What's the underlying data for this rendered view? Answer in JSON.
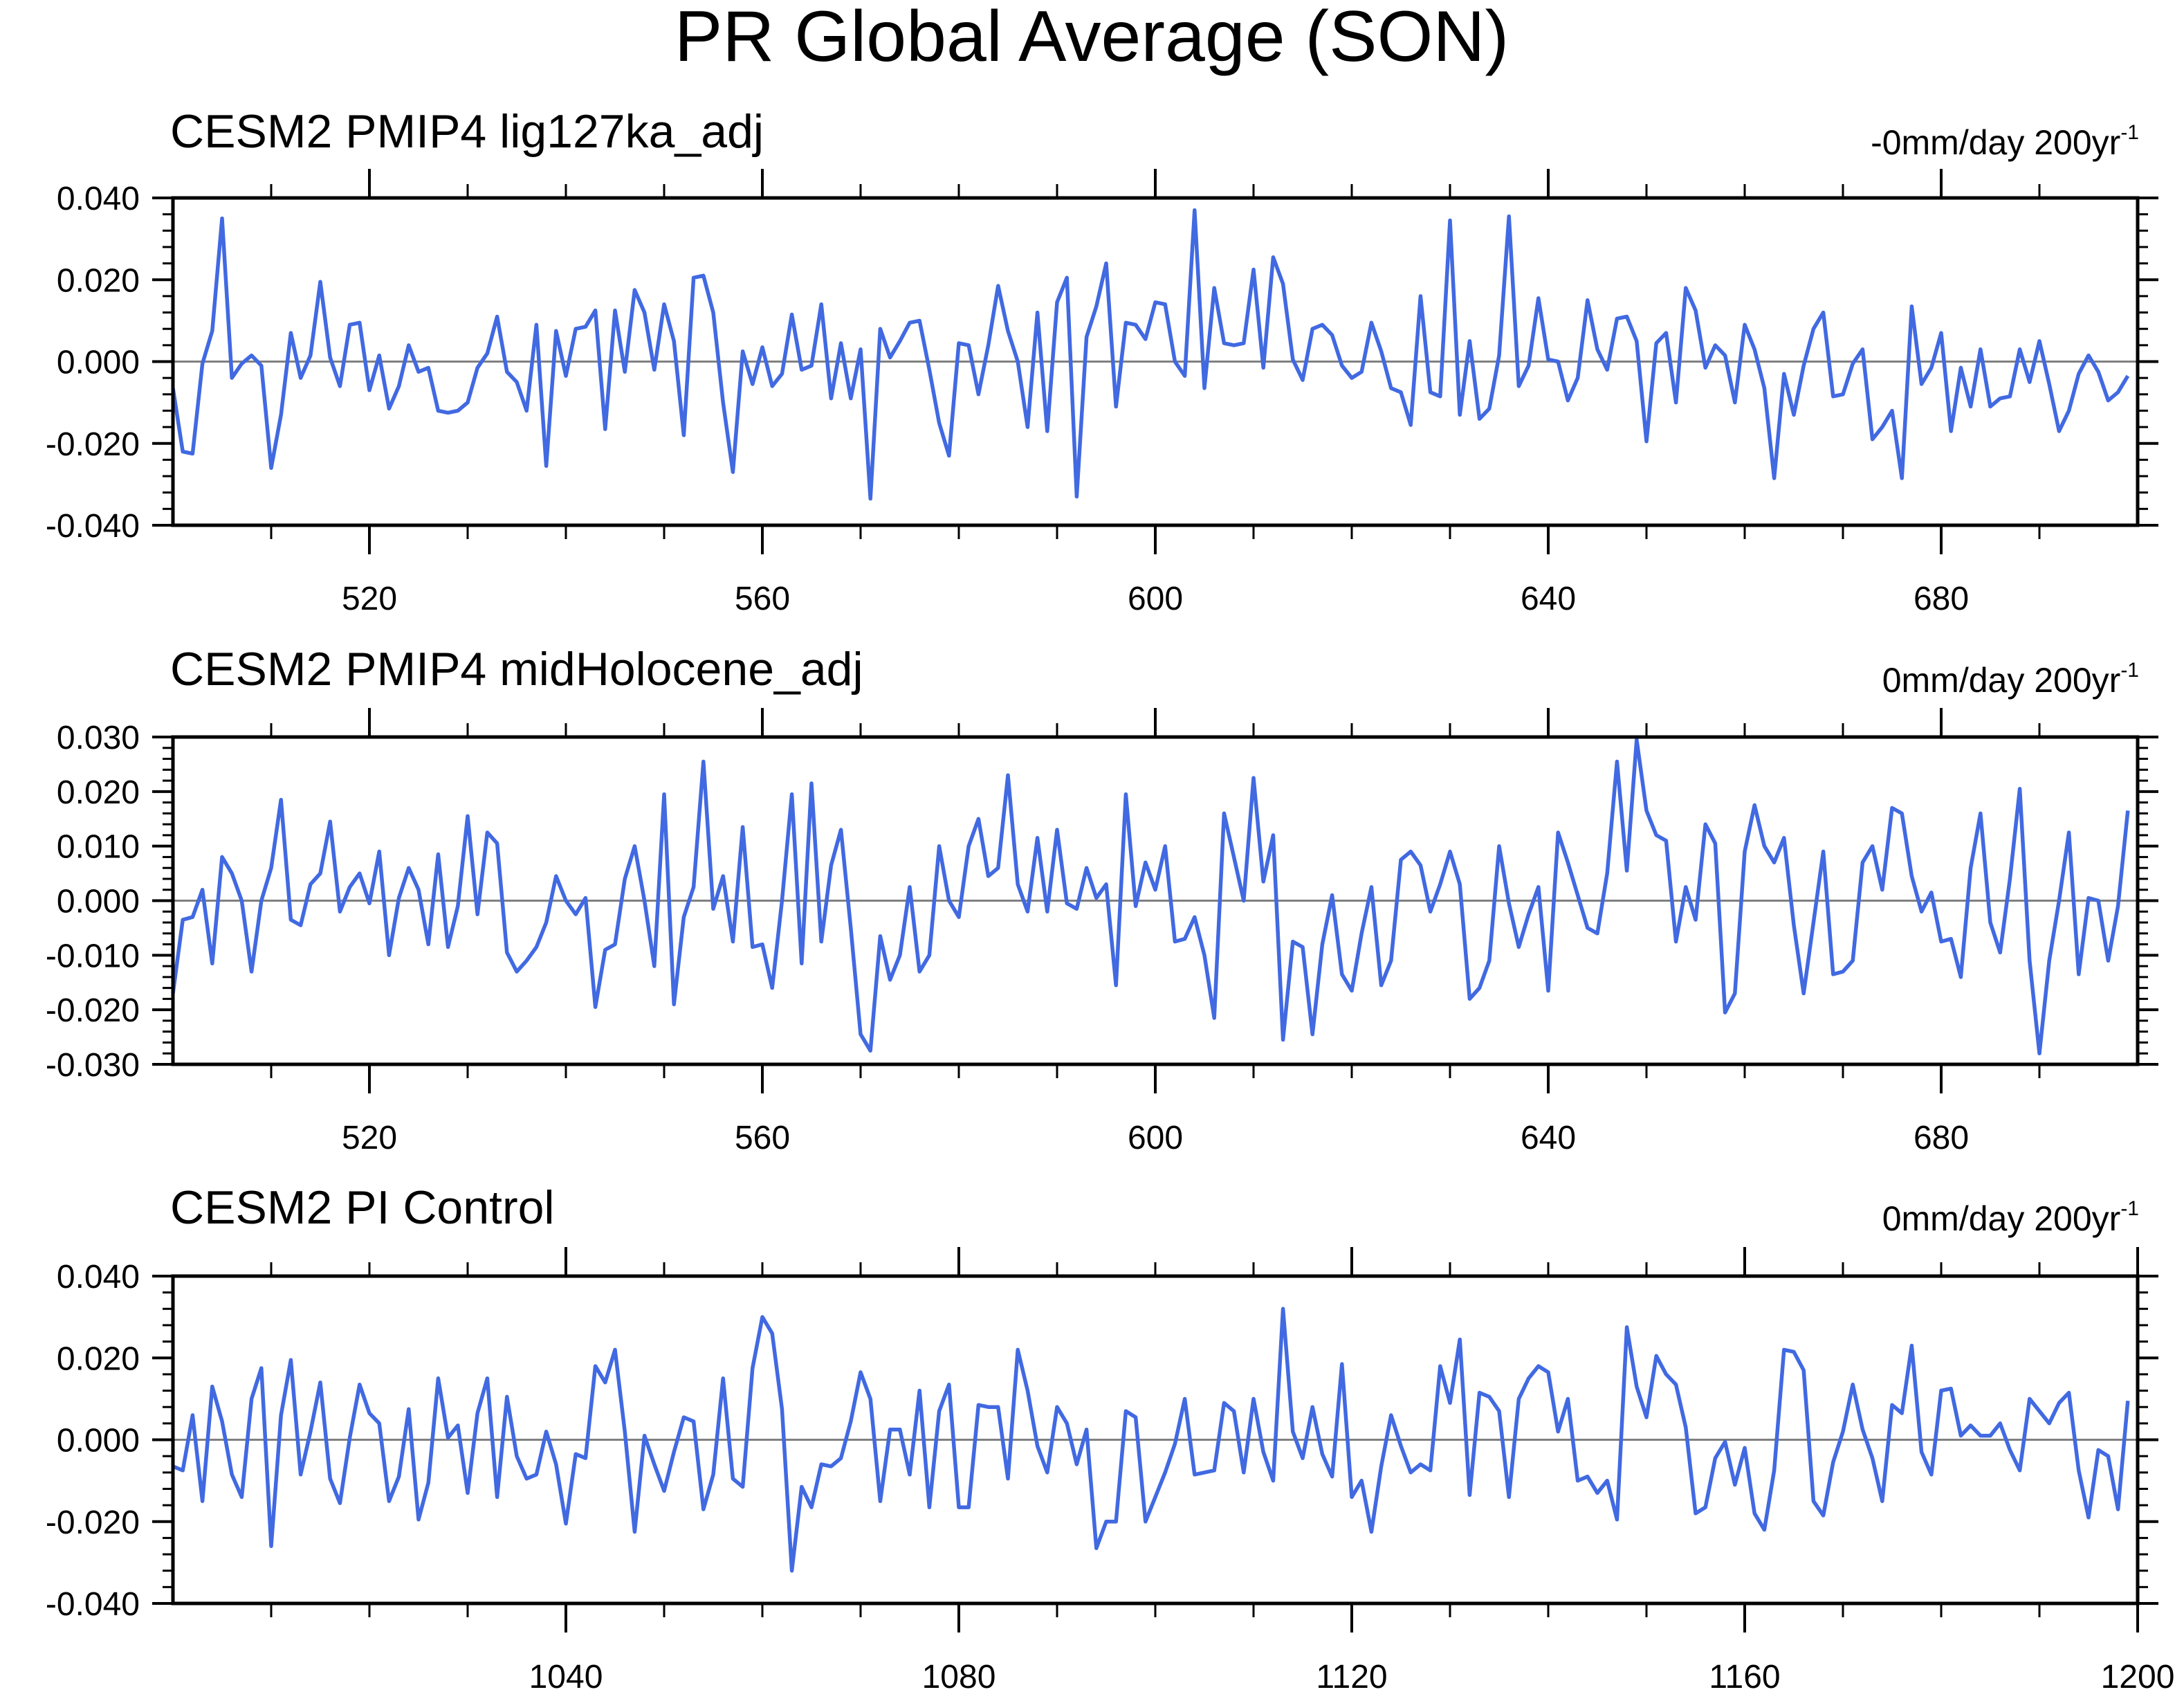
{
  "title": "PR Global Average (SON)",
  "colors": {
    "line": "#4169e1",
    "zero_line": "#808080",
    "axes": "#000000",
    "background": "#ffffff"
  },
  "chart_data": [
    {
      "type": "line",
      "title": "CESM2 PMIP4 lig127ka_adj",
      "trend": {
        "value": "-0mm/day 200yr",
        "superscript": "-1"
      },
      "xlim": [
        500,
        700
      ],
      "ylim": [
        -0.04,
        0.04
      ],
      "yticks": [
        -0.04,
        -0.02,
        0.0,
        0.02,
        0.04
      ],
      "ytick_labels": [
        "-0.040",
        "-0.020",
        "0.000",
        "0.020",
        "0.040"
      ],
      "xticks": [
        520,
        560,
        600,
        640,
        680
      ],
      "xtick_labels": [
        "520",
        "560",
        "600",
        "640",
        "680"
      ],
      "zero_line": true,
      "x_start": 500,
      "x_step": 1,
      "values": [
        -0.0065,
        -0.022,
        -0.0225,
        -0.0005,
        0.0075,
        0.035,
        -0.004,
        -0.0005,
        0.0015,
        -0.001,
        -0.026,
        -0.013,
        0.007,
        -0.004,
        0.0015,
        0.0195,
        0.001,
        -0.006,
        0.009,
        0.0095,
        -0.007,
        0.0015,
        -0.0115,
        -0.006,
        0.004,
        -0.0025,
        -0.0015,
        -0.012,
        -0.0125,
        -0.012,
        -0.01,
        -0.0015,
        0.002,
        0.011,
        -0.0025,
        -0.005,
        -0.012,
        0.009,
        -0.0255,
        0.0075,
        -0.0035,
        0.008,
        0.0085,
        0.0125,
        -0.0165,
        0.0125,
        -0.0025,
        0.0175,
        0.012,
        -0.002,
        0.014,
        0.005,
        -0.018,
        0.0205,
        0.021,
        0.012,
        -0.01,
        -0.027,
        0.0025,
        -0.0055,
        0.0035,
        -0.006,
        -0.003,
        0.0115,
        -0.002,
        -0.001,
        0.014,
        -0.009,
        0.0045,
        -0.009,
        0.003,
        -0.0335,
        0.008,
        0.001,
        0.005,
        0.0095,
        0.01,
        -0.002,
        -0.015,
        -0.023,
        0.0045,
        0.004,
        -0.008,
        0.004,
        0.0185,
        0.0075,
        0.0,
        -0.016,
        0.012,
        -0.017,
        0.0145,
        0.0205,
        -0.033,
        0.006,
        0.0135,
        0.024,
        -0.011,
        0.0095,
        0.009,
        0.0055,
        0.0145,
        0.014,
        0.0,
        -0.0035,
        0.037,
        -0.0065,
        0.018,
        0.0045,
        0.004,
        0.0045,
        0.0225,
        -0.0015,
        0.0255,
        0.019,
        0.0005,
        -0.0045,
        0.008,
        0.009,
        0.0065,
        -0.001,
        -0.004,
        -0.0025,
        0.0095,
        0.0025,
        -0.0065,
        -0.0075,
        -0.0155,
        0.016,
        -0.0075,
        -0.0085,
        0.0345,
        -0.013,
        0.005,
        -0.014,
        -0.0115,
        0.0015,
        0.0355,
        -0.006,
        -0.001,
        0.0155,
        0.0005,
        0.0,
        -0.0095,
        -0.004,
        0.015,
        0.003,
        -0.002,
        0.0105,
        0.011,
        0.005,
        -0.0195,
        0.0045,
        0.007,
        -0.01,
        0.018,
        0.0125,
        -0.0015,
        0.004,
        0.0015,
        -0.01,
        0.009,
        0.003,
        -0.0065,
        -0.0285,
        -0.003,
        -0.013,
        -0.001,
        0.008,
        0.012,
        -0.0085,
        -0.008,
        -0.0005,
        0.003,
        -0.019,
        -0.016,
        -0.012,
        -0.0285,
        0.0135,
        -0.0055,
        -0.0015,
        0.007,
        -0.017,
        -0.0015,
        -0.011,
        0.003,
        -0.011,
        -0.009,
        -0.0085,
        0.003,
        -0.005,
        0.005,
        -0.0055,
        -0.017,
        -0.012,
        -0.003,
        0.0015,
        -0.0025,
        -0.0095,
        -0.0075,
        -0.0035
      ]
    },
    {
      "type": "line",
      "title": "CESM2 PMIP4 midHolocene_adj",
      "trend": {
        "value": "0mm/day 200yr",
        "superscript": "-1"
      },
      "xlim": [
        500,
        700
      ],
      "ylim": [
        -0.03,
        0.03
      ],
      "yticks": [
        -0.03,
        -0.02,
        -0.01,
        0.0,
        0.01,
        0.02,
        0.03
      ],
      "ytick_labels": [
        "-0.030",
        "-0.020",
        "-0.010",
        "0.000",
        "0.010",
        "0.020",
        "0.030"
      ],
      "xticks": [
        520,
        560,
        600,
        640,
        680
      ],
      "xtick_labels": [
        "520",
        "560",
        "600",
        "640",
        "680"
      ],
      "zero_line": true,
      "x_start": 500,
      "x_step": 1,
      "values": [
        -0.017,
        -0.0035,
        -0.003,
        0.002,
        -0.0115,
        0.008,
        0.005,
        0.0,
        -0.013,
        0.0,
        0.006,
        0.0185,
        -0.0035,
        -0.0045,
        0.003,
        0.005,
        0.0145,
        -0.002,
        0.0025,
        0.005,
        -0.0005,
        0.009,
        -0.01,
        0.0005,
        0.006,
        0.002,
        -0.008,
        0.0085,
        -0.0085,
        -0.001,
        0.0155,
        -0.0025,
        0.0125,
        0.0105,
        -0.0095,
        -0.013,
        -0.011,
        -0.0085,
        -0.004,
        0.0045,
        0.0,
        -0.0025,
        0.0005,
        -0.0195,
        -0.009,
        -0.008,
        0.004,
        0.01,
        0.0,
        -0.012,
        0.0195,
        -0.019,
        -0.003,
        0.0025,
        0.0255,
        -0.0015,
        0.0045,
        -0.0075,
        0.0135,
        -0.0085,
        -0.008,
        -0.016,
        0.0,
        0.0195,
        -0.0115,
        0.0215,
        -0.0075,
        0.0065,
        0.013,
        -0.005,
        -0.0245,
        -0.0275,
        -0.0065,
        -0.0145,
        -0.01,
        0.0025,
        -0.013,
        -0.01,
        0.01,
        0.0,
        -0.003,
        0.01,
        0.015,
        0.0045,
        0.006,
        0.023,
        0.003,
        -0.002,
        0.0115,
        -0.002,
        0.013,
        -0.0005,
        -0.0015,
        0.006,
        0.0005,
        0.003,
        -0.0155,
        0.0195,
        -0.001,
        0.007,
        0.002,
        0.01,
        -0.0075,
        -0.007,
        -0.003,
        -0.01,
        -0.0215,
        0.016,
        0.008,
        0.0,
        0.0225,
        0.0035,
        0.012,
        -0.0255,
        -0.0075,
        -0.0085,
        -0.0245,
        -0.008,
        0.001,
        -0.0135,
        -0.0165,
        -0.006,
        0.0025,
        -0.0155,
        -0.011,
        0.0075,
        0.009,
        0.0065,
        -0.002,
        0.003,
        0.009,
        0.003,
        -0.018,
        -0.016,
        -0.011,
        0.01,
        -0.0005,
        -0.0085,
        -0.0025,
        0.0025,
        -0.0165,
        0.0125,
        0.007,
        0.001,
        -0.005,
        -0.006,
        0.005,
        0.0255,
        0.0055,
        0.0295,
        0.0165,
        0.012,
        0.011,
        -0.0075,
        0.0025,
        -0.0035,
        0.014,
        0.0105,
        -0.0205,
        -0.017,
        0.009,
        0.0175,
        0.01,
        0.007,
        0.0115,
        -0.0045,
        -0.017,
        -0.004,
        0.009,
        -0.0135,
        -0.013,
        -0.011,
        0.007,
        0.01,
        0.002,
        0.017,
        0.016,
        0.0045,
        -0.002,
        0.0015,
        -0.0075,
        -0.007,
        -0.014,
        0.006,
        0.016,
        -0.004,
        -0.0095,
        0.004,
        0.0205,
        -0.011,
        -0.028,
        -0.011,
        0.0,
        0.0125,
        -0.0135,
        0.0005,
        0.0,
        -0.011,
        -0.001,
        0.0165
      ]
    },
    {
      "type": "line",
      "title": "CESM2 PI Control",
      "trend": {
        "value": "0mm/day 200yr",
        "superscript": "-1"
      },
      "xlim": [
        1000,
        1200
      ],
      "ylim": [
        -0.04,
        0.04
      ],
      "yticks": [
        -0.04,
        -0.02,
        0.0,
        0.02,
        0.04
      ],
      "ytick_labels": [
        "-0.040",
        "-0.020",
        "0.000",
        "0.020",
        "0.040"
      ],
      "xticks": [
        1040,
        1080,
        1120,
        1160,
        1200
      ],
      "xtick_labels": [
        "1040",
        "1080",
        "1120",
        "1160",
        "1200"
      ],
      "zero_line": true,
      "x_start": 1000,
      "x_step": 1,
      "values": [
        -0.0065,
        -0.0075,
        0.006,
        -0.015,
        0.013,
        0.0045,
        -0.0085,
        -0.014,
        0.01,
        0.0175,
        -0.026,
        0.006,
        0.0195,
        -0.0085,
        0.002,
        0.014,
        -0.0095,
        -0.0155,
        0.0005,
        0.0135,
        0.0065,
        0.004,
        -0.015,
        -0.009,
        0.0075,
        -0.0195,
        -0.0105,
        0.015,
        0.0005,
        0.0035,
        -0.013,
        0.0065,
        0.015,
        -0.014,
        0.0105,
        -0.004,
        -0.0095,
        -0.0085,
        0.002,
        -0.006,
        -0.0205,
        -0.0035,
        -0.0045,
        0.018,
        0.014,
        0.022,
        0.002,
        -0.0225,
        0.001,
        -0.006,
        -0.0125,
        -0.003,
        0.0055,
        0.0045,
        -0.017,
        -0.0085,
        0.015,
        -0.0095,
        -0.0115,
        0.0175,
        0.03,
        0.026,
        0.0075,
        -0.032,
        -0.0115,
        -0.0165,
        -0.006,
        -0.0065,
        -0.0045,
        0.0045,
        0.0165,
        0.01,
        -0.015,
        0.0025,
        0.0025,
        -0.0085,
        0.012,
        -0.0165,
        0.007,
        0.0135,
        -0.0165,
        -0.0165,
        0.0085,
        0.008,
        0.008,
        -0.0095,
        0.022,
        0.012,
        -0.0015,
        -0.008,
        0.008,
        0.004,
        -0.006,
        0.0025,
        -0.0265,
        -0.02,
        -0.02,
        0.007,
        0.0055,
        -0.02,
        -0.014,
        -0.008,
        -0.001,
        0.01,
        -0.0085,
        -0.008,
        -0.0075,
        0.009,
        0.007,
        -0.008,
        0.01,
        -0.003,
        -0.01,
        0.032,
        0.002,
        -0.0045,
        0.008,
        -0.0035,
        -0.009,
        0.0185,
        -0.014,
        -0.01,
        -0.0225,
        -0.0065,
        0.006,
        -0.0015,
        -0.008,
        -0.006,
        -0.0075,
        0.018,
        0.009,
        0.0245,
        -0.0135,
        0.0115,
        0.0105,
        0.007,
        -0.014,
        0.01,
        0.015,
        0.018,
        0.0165,
        0.002,
        0.01,
        -0.01,
        -0.009,
        -0.013,
        -0.01,
        -0.0195,
        0.0275,
        0.013,
        0.0055,
        0.0205,
        0.016,
        0.0135,
        0.003,
        -0.018,
        -0.0165,
        -0.0045,
        -0.0005,
        -0.011,
        -0.002,
        -0.018,
        -0.022,
        -0.0075,
        0.022,
        0.0215,
        0.017,
        -0.015,
        -0.0185,
        -0.0055,
        0.002,
        0.0135,
        0.0025,
        -0.0045,
        -0.015,
        0.0085,
        0.0065,
        0.023,
        -0.003,
        -0.0085,
        0.012,
        0.0125,
        0.001,
        0.0035,
        0.001,
        0.001,
        0.004,
        -0.0025,
        -0.0075,
        0.01,
        0.007,
        0.004,
        0.009,
        0.0115,
        -0.0075,
        -0.019,
        -0.0025,
        -0.004,
        -0.017,
        0.0095
      ]
    }
  ]
}
